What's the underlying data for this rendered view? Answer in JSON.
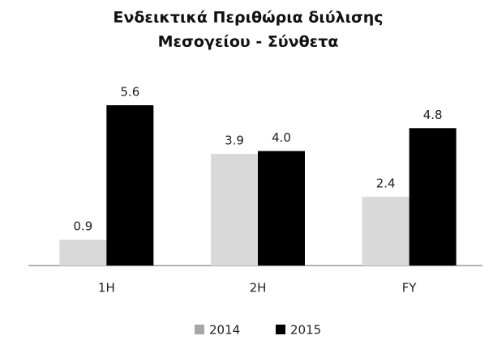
{
  "chart_data": {
    "type": "bar",
    "title": [
      "Ενδεικτικά Περιθώρια διύλισης",
      "Μεσογείου - Σύνθετα"
    ],
    "categories": [
      "1H",
      "2H",
      "FY"
    ],
    "series": [
      {
        "name": "2014",
        "color": "#d9d9d9",
        "values": [
          0.9,
          3.9,
          2.4
        ],
        "value_labels": [
          "0.9",
          "3.9",
          "2.4"
        ]
      },
      {
        "name": "2015",
        "color": "#000000",
        "values": [
          5.6,
          4.0,
          4.8
        ],
        "value_labels": [
          "5.6",
          "4.0",
          "4.8"
        ]
      }
    ],
    "legend": "bottom"
  }
}
